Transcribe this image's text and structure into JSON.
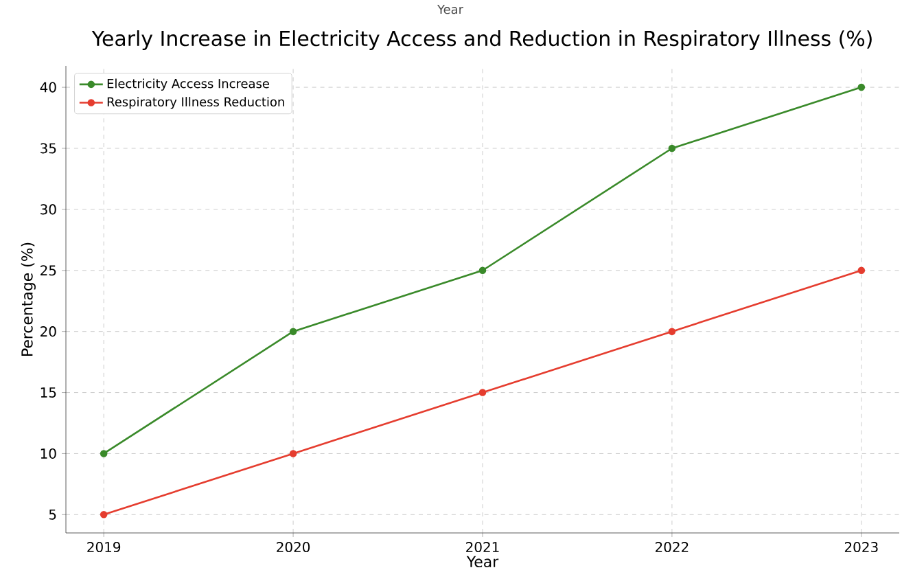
{
  "chart_data": {
    "type": "line",
    "title": "Yearly Increase in Electricity Access and Reduction in Respiratory Illness (%)",
    "xlabel": "Year",
    "ylabel": "Percentage (%)",
    "annotations": [
      "Year"
    ],
    "x": [
      2019,
      2020,
      2021,
      2022,
      2023
    ],
    "series": [
      {
        "name": "Electricity Access Increase",
        "color": "#3a8a2a",
        "values": [
          10,
          20,
          25,
          35,
          40
        ]
      },
      {
        "name": "Respiratory Illness Reduction",
        "color": "#e53d2f",
        "values": [
          5,
          10,
          15,
          20,
          25
        ]
      }
    ],
    "xlim": [
      2018.8,
      2023.2
    ],
    "ylim": [
      3.5,
      41.75
    ],
    "xticks": [
      2019,
      2020,
      2021,
      2022,
      2023
    ],
    "yticks": [
      5,
      10,
      15,
      20,
      25,
      30,
      35,
      40
    ],
    "grid": true,
    "legend": "top left",
    "marker": "circle",
    "line_style": "solid"
  }
}
